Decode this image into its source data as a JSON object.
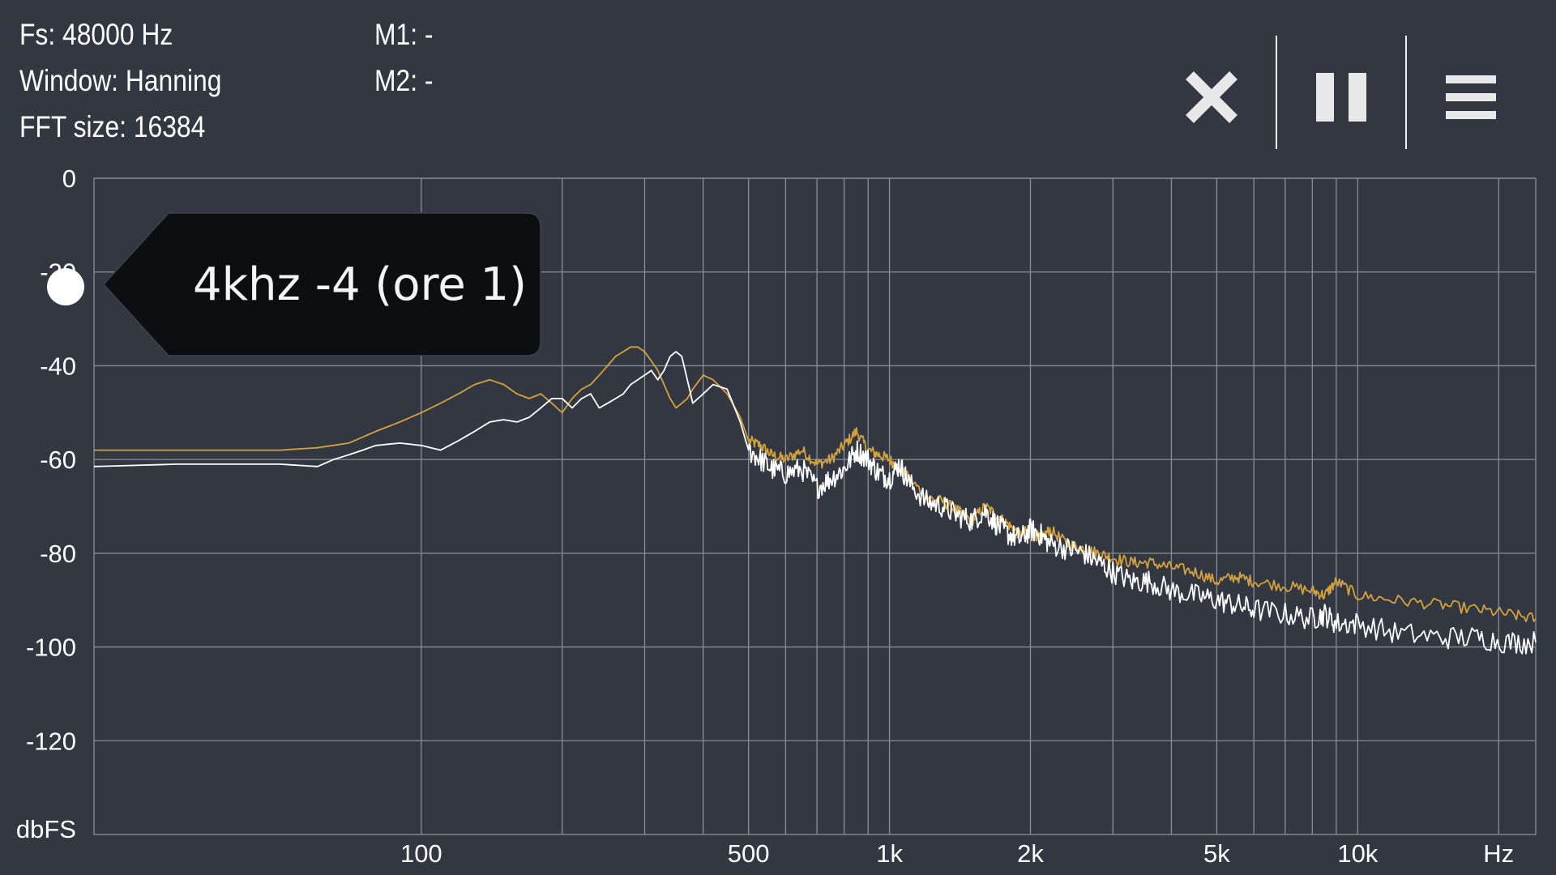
{
  "info": {
    "fs": "Fs: 48000 Hz",
    "window": "Window: Hanning",
    "fft_size": "FFT size: 16384",
    "m1": "M1: -",
    "m2": "M2: -"
  },
  "toolbar": {
    "close_icon": "close-icon",
    "pause_icon": "pause-icon",
    "menu_icon": "menu-icon"
  },
  "tooltip": {
    "text": "4khz -4 (ore 1)"
  },
  "colors": {
    "background": "#323742",
    "grid": "#8a8e96",
    "series_peak": "#d4a23c",
    "series_live": "#ffffff",
    "tooltip_bg": "#0d0e10"
  },
  "chart_data": {
    "type": "line",
    "xscale": "log",
    "xlim": [
      20,
      24000
    ],
    "ylim": [
      -140,
      0
    ],
    "ylabel": "dbFS",
    "xunit": "Hz",
    "grid": true,
    "y_ticks": [
      {
        "value": 0,
        "label": "0"
      },
      {
        "value": -20,
        "label": "-20"
      },
      {
        "value": -40,
        "label": "-40"
      },
      {
        "value": -60,
        "label": "-60"
      },
      {
        "value": -80,
        "label": "-80"
      },
      {
        "value": -100,
        "label": "-100"
      },
      {
        "value": -120,
        "label": "-120"
      }
    ],
    "x_grid": [
      100,
      200,
      300,
      400,
      500,
      600,
      700,
      800,
      900,
      1000,
      2000,
      3000,
      4000,
      5000,
      6000,
      7000,
      8000,
      9000,
      10000,
      20000
    ],
    "x_ticks": [
      {
        "value": 100,
        "label": "100"
      },
      {
        "value": 500,
        "label": "500"
      },
      {
        "value": 1000,
        "label": "1k"
      },
      {
        "value": 2000,
        "label": "2k"
      },
      {
        "value": 5000,
        "label": "5k"
      },
      {
        "value": 10000,
        "label": "10k"
      },
      {
        "value": 20000,
        "label": "Hz"
      }
    ],
    "series": [
      {
        "color": "#d4a23c",
        "x": [
          20,
          30,
          50,
          60,
          70,
          80,
          90,
          100,
          110,
          120,
          130,
          140,
          150,
          160,
          170,
          180,
          190,
          200,
          210,
          220,
          230,
          240,
          250,
          260,
          270,
          280,
          290,
          300,
          310,
          320,
          330,
          340,
          350,
          360,
          370,
          380,
          400,
          420,
          450,
          480,
          500,
          530,
          560,
          600,
          650,
          700,
          750,
          800,
          850,
          900,
          950,
          1000,
          1050,
          1100,
          1200,
          1300,
          1400,
          1500,
          1600,
          1700,
          1800,
          1900,
          2000,
          2100,
          2200,
          2400,
          2600,
          2800,
          3000,
          3300,
          3600,
          4000,
          4500,
          5000,
          5500,
          6000,
          7000,
          8000,
          8500,
          9000,
          10000,
          12000,
          15000,
          18000,
          21000,
          24000
        ],
        "y": [
          -58,
          -58,
          -58,
          -57.5,
          -56.5,
          -54,
          -52,
          -50,
          -48,
          -46,
          -44,
          -43,
          -44,
          -46,
          -47,
          -46,
          -48,
          -50,
          -47,
          -45,
          -44,
          -42,
          -40,
          -38,
          -37,
          -36,
          -36,
          -37,
          -39,
          -41,
          -44,
          -47,
          -49,
          -48,
          -47,
          -45,
          -42,
          -43,
          -46,
          -51,
          -56,
          -57,
          -59,
          -60,
          -58,
          -61,
          -60,
          -57,
          -54,
          -58,
          -59,
          -60,
          -62,
          -64,
          -68,
          -69,
          -71,
          -73,
          -70,
          -72,
          -74,
          -76,
          -75,
          -77,
          -75,
          -78,
          -79,
          -80,
          -81,
          -82,
          -82,
          -83,
          -84,
          -86,
          -85,
          -86,
          -87,
          -88,
          -89,
          -86,
          -89,
          -90,
          -91,
          -92,
          -93,
          -94
        ]
      },
      {
        "color": "#ffffff",
        "x": [
          20,
          30,
          50,
          60,
          65,
          70,
          75,
          80,
          90,
          100,
          110,
          120,
          130,
          140,
          150,
          160,
          170,
          180,
          190,
          200,
          210,
          220,
          230,
          240,
          250,
          260,
          270,
          280,
          290,
          300,
          310,
          320,
          330,
          340,
          350,
          360,
          370,
          380,
          400,
          420,
          450,
          480,
          500,
          530,
          560,
          600,
          650,
          700,
          750,
          800,
          850,
          900,
          950,
          1000,
          1050,
          1100,
          1200,
          1300,
          1400,
          1500,
          1600,
          1700,
          1800,
          1900,
          2000,
          2100,
          2200,
          2400,
          2600,
          2800,
          3000,
          3300,
          3600,
          4000,
          4500,
          5000,
          5500,
          6000,
          7000,
          8000,
          8500,
          9000,
          10000,
          12000,
          15000,
          18000,
          21000,
          24000
        ],
        "y": [
          -61.5,
          -61,
          -61,
          -61.5,
          -60,
          -59,
          -58,
          -57,
          -56.5,
          -57,
          -58,
          -56,
          -54,
          -52,
          -51.5,
          -52,
          -51,
          -49,
          -47,
          -47,
          -49,
          -47,
          -46,
          -49,
          -48,
          -47,
          -46,
          -44,
          -43,
          -42,
          -41,
          -43,
          -41,
          -38,
          -37,
          -38,
          -43,
          -48,
          -46,
          -44,
          -45,
          -52,
          -58,
          -60,
          -62,
          -63,
          -62,
          -66,
          -64,
          -62,
          -58,
          -60,
          -63,
          -64,
          -61,
          -65,
          -69,
          -70,
          -72,
          -73,
          -71,
          -74,
          -76,
          -77,
          -75,
          -76,
          -78,
          -79,
          -80,
          -82,
          -84,
          -86,
          -86,
          -88,
          -89,
          -90,
          -91,
          -92,
          -93,
          -94,
          -93,
          -95,
          -95,
          -97,
          -98,
          -98,
          -99,
          -99
        ]
      }
    ]
  }
}
